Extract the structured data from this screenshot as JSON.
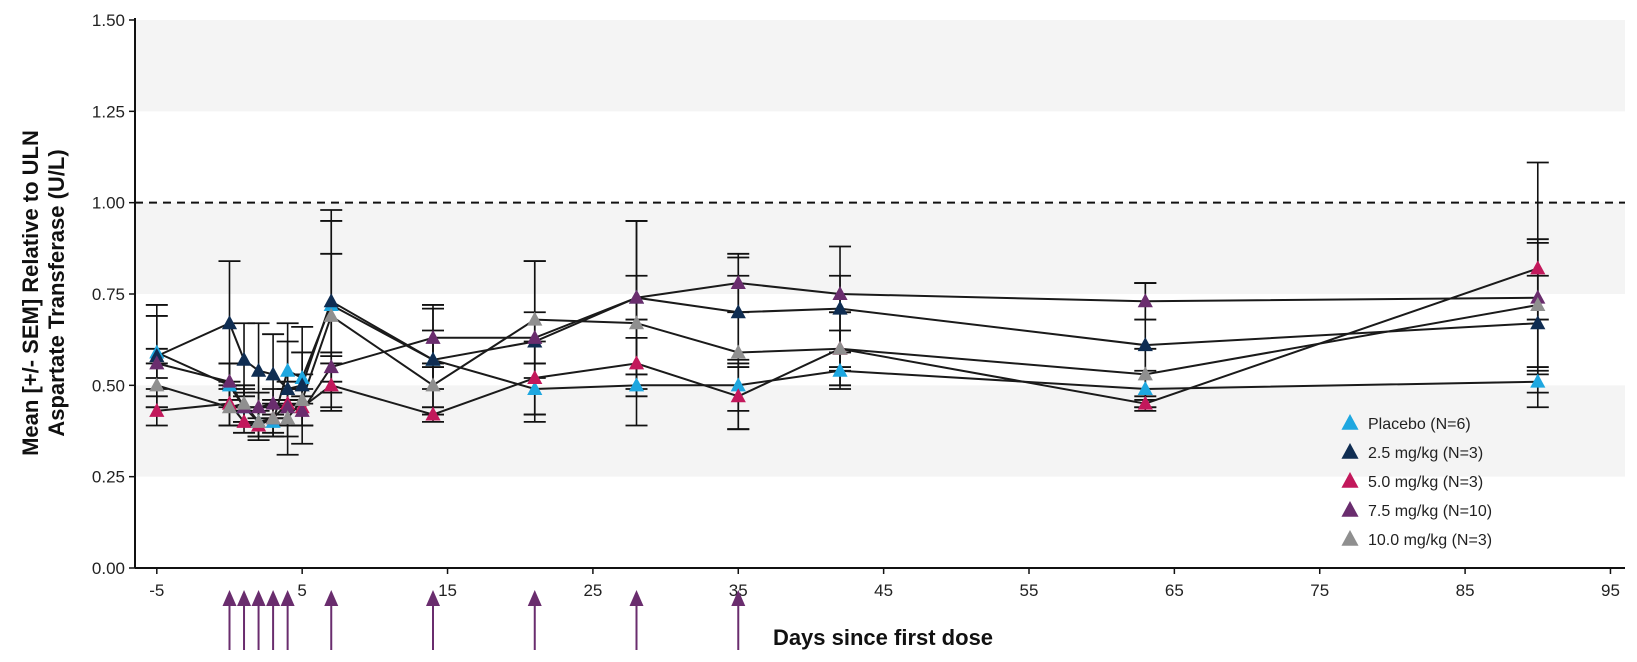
{
  "chart_data": {
    "type": "line",
    "title": "",
    "xlabel": "Days since first dose",
    "ylabel_lines": [
      "Mean [+/- SEM] Relative to ULN",
      "Aspartate Transferase (U/L)"
    ],
    "xlim": [
      -6.5,
      96
    ],
    "ylim": [
      0,
      1.5
    ],
    "xticks": [
      -5,
      5,
      15,
      25,
      35,
      45,
      55,
      65,
      75,
      85,
      95
    ],
    "xtick_labels": [
      "-5",
      "5",
      "15",
      "25",
      "35",
      "45",
      "55",
      "65",
      "75",
      "85",
      "95"
    ],
    "yticks": [
      0,
      0.25,
      0.5,
      0.75,
      1.0,
      1.25,
      1.5
    ],
    "ytick_labels": [
      "0.00",
      "0.25",
      "0.50",
      "0.75",
      "1.00",
      "1.25",
      "1.50"
    ],
    "shaded_bands": [
      [
        0.25,
        0.5
      ],
      [
        0.75,
        1.0
      ],
      [
        1.25,
        1.5
      ]
    ],
    "band_color": "#f4f4f4",
    "reference_line": 1.0,
    "line_color": "#1a1a1a",
    "arrow_color": "#6a2d6e",
    "dose_days": [
      0,
      1,
      2,
      3,
      4,
      7,
      14,
      21,
      28,
      35
    ],
    "legend_position": "bottom-right",
    "series": [
      {
        "name": "Placebo (N=6)",
        "color": "#1ea7e0",
        "x": [
          -5,
          0,
          1,
          2,
          3,
          4,
          5,
          7,
          14,
          21,
          28,
          35,
          42,
          63,
          90
        ],
        "y": [
          0.59,
          0.5,
          0.44,
          0.4,
          0.4,
          0.54,
          0.52,
          0.72,
          0.57,
          0.49,
          0.5,
          0.5,
          0.54,
          0.49,
          0.51
        ],
        "err": [
          0.1,
          0.06,
          0.05,
          0.04,
          0.04,
          0.08,
          0.07,
          0.14,
          0.08,
          0.07,
          0.03,
          0.07,
          0.05,
          0.05,
          0.03
        ]
      },
      {
        "name": "2.5 mg/kg (N=3)",
        "color": "#0f2d52",
        "x": [
          -5,
          0,
          1,
          2,
          3,
          4,
          5,
          7,
          14,
          21,
          28,
          35,
          42,
          63,
          90
        ],
        "y": [
          0.58,
          0.67,
          0.57,
          0.54,
          0.53,
          0.49,
          0.5,
          0.73,
          0.57,
          0.62,
          0.74,
          0.7,
          0.71,
          0.61,
          0.67
        ],
        "err": [
          0.14,
          0.17,
          0.1,
          0.13,
          0.11,
          0.18,
          0.16,
          0.25,
          0.15,
          0.22,
          0.21,
          0.15,
          0.17,
          0.17,
          0.23
        ]
      },
      {
        "name": "5.0 mg/kg (N=3)",
        "color": "#c2185b",
        "x": [
          -5,
          0,
          1,
          2,
          3,
          4,
          5,
          7,
          14,
          21,
          28,
          35,
          42,
          63,
          90
        ],
        "y": [
          0.43,
          0.45,
          0.4,
          0.39,
          0.41,
          0.45,
          0.44,
          0.5,
          0.42,
          0.52,
          0.56,
          0.47,
          0.6,
          0.45,
          0.82
        ],
        "err": [
          0.04,
          0.06,
          0.03,
          0.04,
          0.04,
          0.06,
          0.05,
          0.06,
          0.02,
          0.1,
          0.07,
          0.09,
          0.05,
          0.02,
          0.29
        ]
      },
      {
        "name": "7.5 mg/kg (N=10)",
        "color": "#6a2d6e",
        "x": [
          -5,
          0,
          1,
          2,
          3,
          4,
          5,
          7,
          14,
          21,
          28,
          35,
          42,
          63,
          90
        ],
        "y": [
          0.56,
          0.51,
          0.44,
          0.44,
          0.45,
          0.44,
          0.43,
          0.55,
          0.63,
          0.63,
          0.74,
          0.78,
          0.75,
          0.73,
          0.74
        ],
        "err": [
          0.04,
          0.05,
          0.04,
          0.04,
          0.04,
          0.05,
          0.04,
          0.04,
          0.08,
          0.07,
          0.06,
          0.08,
          0.05,
          0.05,
          0.06
        ]
      },
      {
        "name": "10.0 mg/kg (N=3)",
        "color": "#8f8f8f",
        "x": [
          -5,
          0,
          1,
          2,
          3,
          4,
          5,
          7,
          14,
          21,
          28,
          35,
          42,
          63,
          90
        ],
        "y": [
          0.5,
          0.44,
          0.45,
          0.4,
          0.41,
          0.41,
          0.46,
          0.69,
          0.5,
          0.68,
          0.67,
          0.59,
          0.6,
          0.53,
          0.72
        ],
        "err": [
          0.06,
          0.05,
          0.05,
          0.04,
          0.05,
          0.05,
          0.07,
          0.26,
          0.06,
          0.16,
          0.28,
          0.21,
          0.1,
          0.07,
          0.17
        ]
      }
    ]
  }
}
